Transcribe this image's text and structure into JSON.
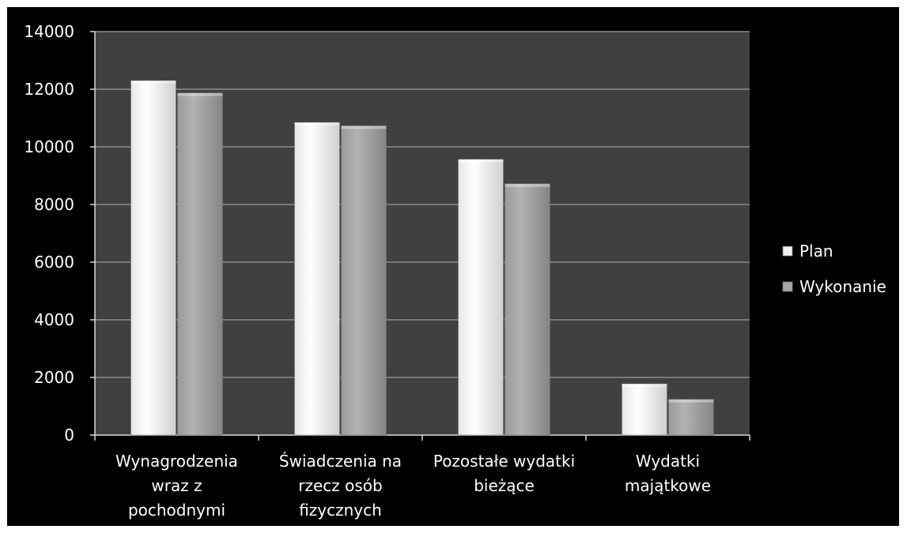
{
  "chart_data": {
    "type": "bar",
    "categories": [
      [
        "Wynagrodzenia",
        "wraz z",
        "pochodnymi"
      ],
      [
        "Świadczenia na",
        "rzecz osób",
        "fizycznych"
      ],
      [
        "Pozostałe wydatki",
        "bieżące"
      ],
      [
        "Wydatki",
        "majątkowe"
      ]
    ],
    "series": [
      {
        "name": "Plan",
        "values": [
          12300,
          10850,
          9570,
          1780
        ],
        "color": "#f2f2f2"
      },
      {
        "name": "Wykonanie",
        "values": [
          11870,
          10730,
          8720,
          1240
        ],
        "color": "#a6a6a6"
      }
    ],
    "yticks": [
      "0",
      "2000",
      "4000",
      "6000",
      "8000",
      "10000",
      "12000",
      "14000"
    ],
    "ylim": [
      0,
      14000
    ],
    "grid": true,
    "legend_position": "right",
    "background": "#000000",
    "plot_background": "#404040",
    "gridline_color": "#8c8c8c"
  }
}
